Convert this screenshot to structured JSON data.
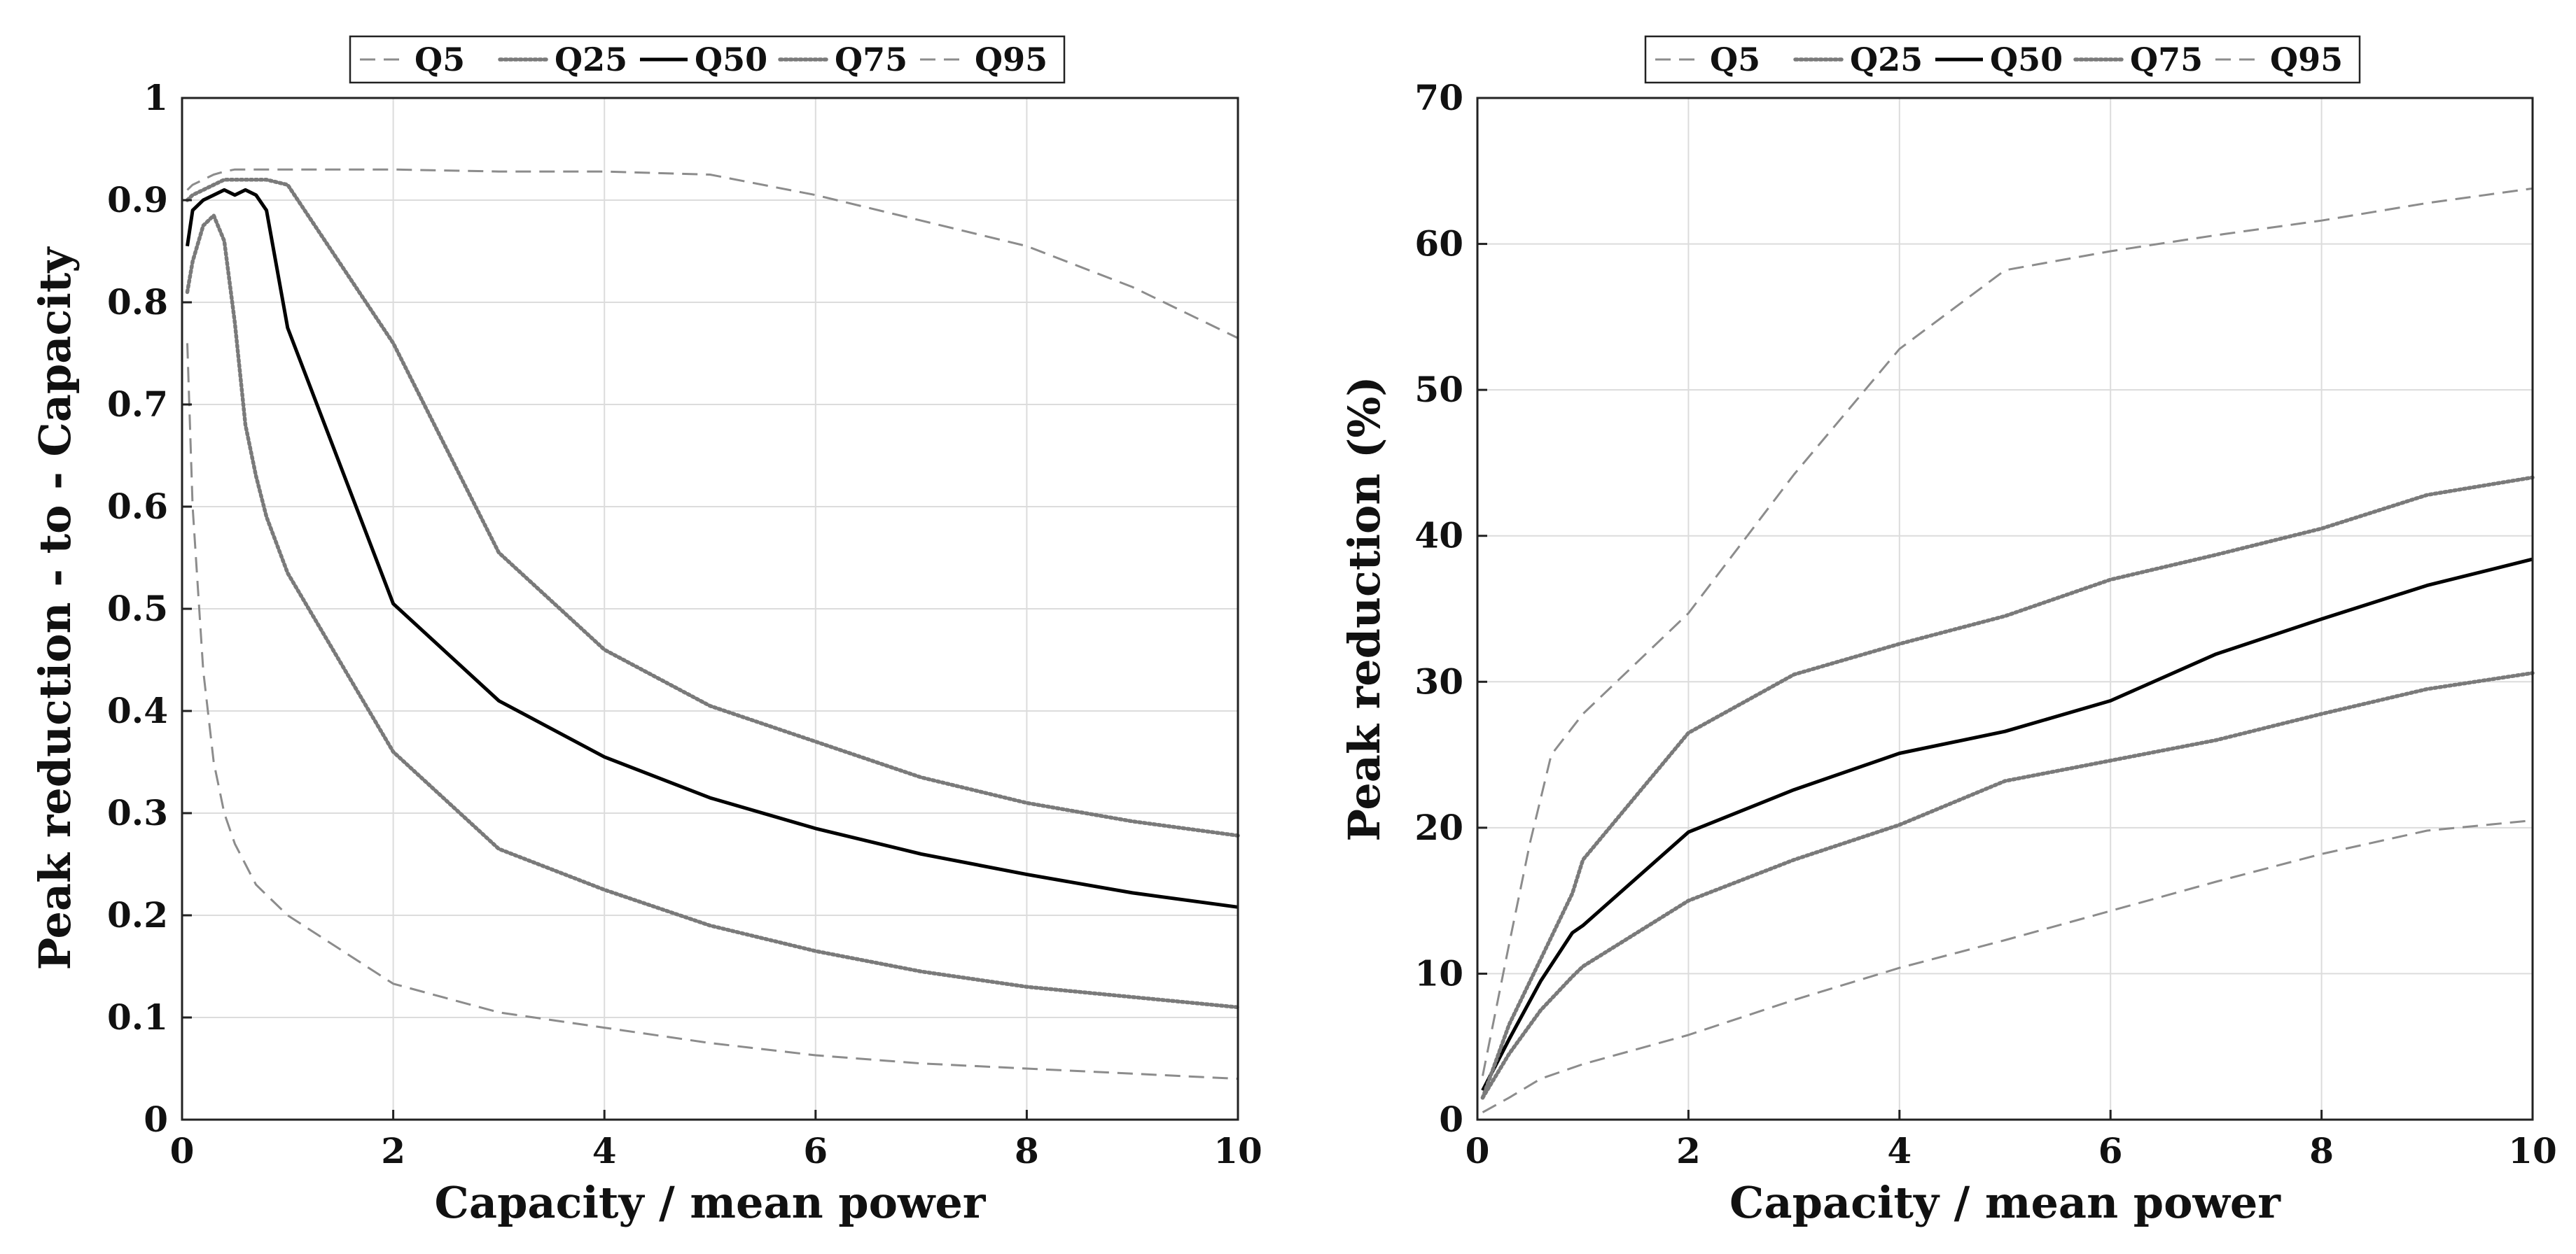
{
  "chart_data": [
    {
      "type": "line",
      "title": "",
      "xlabel": "Capacity / mean power",
      "ylabel": "Peak reduction - to - Capacity",
      "xlim": [
        0,
        10
      ],
      "ylim": [
        0,
        1
      ],
      "xticks": [
        0,
        2,
        4,
        6,
        8,
        10
      ],
      "yticks": [
        0,
        0.1,
        0.2,
        0.3,
        0.4,
        0.5,
        0.6,
        0.7,
        0.8,
        0.9,
        1
      ],
      "ytick_labels": [
        "0",
        "0.1",
        "0.2",
        "0.3",
        "0.4",
        "0.5",
        "0.6",
        "0.7",
        "0.8",
        "0.9",
        "1"
      ],
      "grid": true,
      "legend_position": "top-center",
      "series": [
        {
          "name": "Q5",
          "style": "dashed",
          "x": [
            0.05,
            0.1,
            0.2,
            0.3,
            0.4,
            0.5,
            0.6,
            0.7,
            0.8,
            1,
            2,
            3,
            4,
            5,
            6,
            7,
            8,
            9,
            10
          ],
          "y": [
            0.76,
            0.6,
            0.44,
            0.35,
            0.3,
            0.27,
            0.25,
            0.23,
            0.22,
            0.2,
            0.133,
            0.105,
            0.09,
            0.075,
            0.063,
            0.055,
            0.05,
            0.045,
            0.04
          ]
        },
        {
          "name": "Q25",
          "style": "dotted",
          "x": [
            0.05,
            0.1,
            0.2,
            0.3,
            0.4,
            0.5,
            0.6,
            0.7,
            0.8,
            1,
            2,
            3,
            4,
            5,
            6,
            7,
            8,
            9,
            10
          ],
          "y": [
            0.81,
            0.84,
            0.875,
            0.885,
            0.86,
            0.78,
            0.68,
            0.63,
            0.59,
            0.535,
            0.36,
            0.265,
            0.225,
            0.19,
            0.165,
            0.145,
            0.13,
            0.12,
            0.11
          ]
        },
        {
          "name": "Q50",
          "style": "solid",
          "x": [
            0.05,
            0.1,
            0.2,
            0.3,
            0.4,
            0.5,
            0.6,
            0.7,
            0.8,
            1,
            2,
            3,
            4,
            5,
            6,
            7,
            8,
            9,
            10
          ],
          "y": [
            0.855,
            0.89,
            0.9,
            0.905,
            0.91,
            0.905,
            0.91,
            0.905,
            0.89,
            0.775,
            0.505,
            0.41,
            0.355,
            0.315,
            0.285,
            0.26,
            0.24,
            0.222,
            0.208
          ]
        },
        {
          "name": "Q75",
          "style": "dotted",
          "x": [
            0.05,
            0.1,
            0.2,
            0.3,
            0.4,
            0.5,
            0.6,
            0.7,
            0.8,
            1,
            2,
            3,
            4,
            5,
            6,
            7,
            8,
            9,
            10
          ],
          "y": [
            0.9,
            0.905,
            0.91,
            0.915,
            0.92,
            0.92,
            0.92,
            0.92,
            0.92,
            0.915,
            0.76,
            0.555,
            0.46,
            0.405,
            0.37,
            0.335,
            0.31,
            0.292,
            0.278
          ]
        },
        {
          "name": "Q95",
          "style": "dashed",
          "x": [
            0.05,
            0.1,
            0.2,
            0.3,
            0.4,
            0.5,
            0.6,
            0.7,
            0.8,
            1,
            2,
            3,
            4,
            5,
            6,
            7,
            8,
            9,
            10
          ],
          "y": [
            0.91,
            0.915,
            0.92,
            0.925,
            0.928,
            0.93,
            0.93,
            0.93,
            0.93,
            0.93,
            0.93,
            0.928,
            0.928,
            0.925,
            0.905,
            0.88,
            0.855,
            0.815,
            0.765
          ]
        }
      ]
    },
    {
      "type": "line",
      "title": "",
      "xlabel": "Capacity / mean power",
      "ylabel": "Peak reduction (%)",
      "xlim": [
        0,
        10
      ],
      "ylim": [
        0,
        70
      ],
      "xticks": [
        0,
        2,
        4,
        6,
        8,
        10
      ],
      "yticks": [
        0,
        10,
        20,
        30,
        40,
        50,
        60,
        70
      ],
      "ytick_labels": [
        "0",
        "10",
        "20",
        "30",
        "40",
        "50",
        "60",
        "70"
      ],
      "grid": true,
      "legend_position": "top-center",
      "series": [
        {
          "name": "Q5",
          "style": "dashed",
          "x": [
            0.05,
            0.3,
            0.6,
            1,
            2,
            3,
            4,
            5,
            6,
            7,
            8,
            9,
            10
          ],
          "y": [
            0.5,
            1.5,
            2.8,
            3.8,
            5.8,
            8.2,
            10.4,
            12.3,
            14.3,
            16.3,
            18.2,
            19.8,
            20.5
          ]
        },
        {
          "name": "Q25",
          "style": "dotted",
          "x": [
            0.05,
            0.3,
            0.6,
            0.9,
            1,
            2,
            3,
            4,
            5,
            6,
            7,
            8,
            9,
            10
          ],
          "y": [
            1.5,
            4.5,
            7.5,
            9.8,
            10.5,
            15,
            17.8,
            20.2,
            23.2,
            24.6,
            26,
            27.8,
            29.5,
            30.6
          ]
        },
        {
          "name": "Q50",
          "style": "solid",
          "x": [
            0.05,
            0.3,
            0.6,
            0.9,
            1,
            2,
            3,
            4,
            5,
            6,
            7,
            8,
            9,
            10
          ],
          "y": [
            2,
            5.5,
            9.5,
            12.8,
            13.3,
            19.7,
            22.6,
            25.1,
            26.6,
            28.7,
            31.9,
            34.3,
            36.6,
            38.4
          ]
        },
        {
          "name": "Q75",
          "style": "dotted",
          "x": [
            0.05,
            0.3,
            0.6,
            0.9,
            1,
            2,
            3,
            4,
            5,
            6,
            7,
            8,
            9,
            10
          ],
          "y": [
            1.5,
            6.5,
            11,
            15.5,
            17.8,
            26.5,
            30.5,
            32.6,
            34.5,
            37,
            38.7,
            40.5,
            42.8,
            44
          ]
        },
        {
          "name": "Q95",
          "style": "dashed",
          "x": [
            0.05,
            0.3,
            0.5,
            0.7,
            1,
            2,
            3,
            4,
            5,
            6,
            7,
            8,
            9,
            10
          ],
          "y": [
            3,
            12,
            19,
            25,
            27.8,
            34.7,
            44.2,
            52.8,
            58.2,
            59.5,
            60.6,
            61.6,
            62.8,
            63.8
          ]
        }
      ]
    }
  ]
}
